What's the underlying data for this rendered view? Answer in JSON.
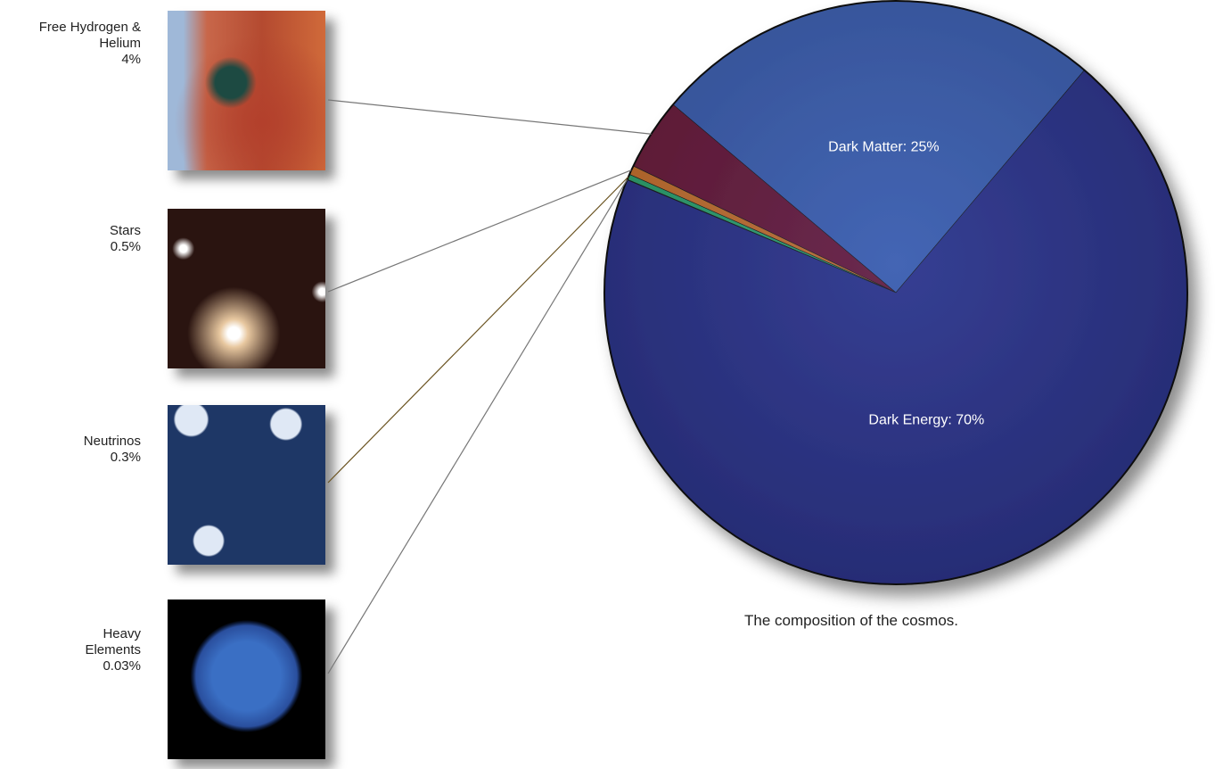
{
  "chart_data": {
    "type": "pie",
    "categories": [
      null,
      "Free Hydrogen & Helium",
      "Stars",
      "Neutrinos",
      "Heavy Elements",
      null
    ],
    "values": [
      25,
      4,
      0.5,
      0.3,
      0.03,
      70
    ],
    "value_labels": [
      "Dark Matter: 25%",
      "4%",
      "0.5%",
      "0.3%",
      "0.03%",
      "Dark Energy: 70%"
    ],
    "colors": [
      "#3d5fae",
      "#6a1a38",
      "#c7702b",
      "#2ea36c",
      "#8fd0d8",
      "#2c3287"
    ],
    "caption": "The composition of the cosmos."
  }
}
